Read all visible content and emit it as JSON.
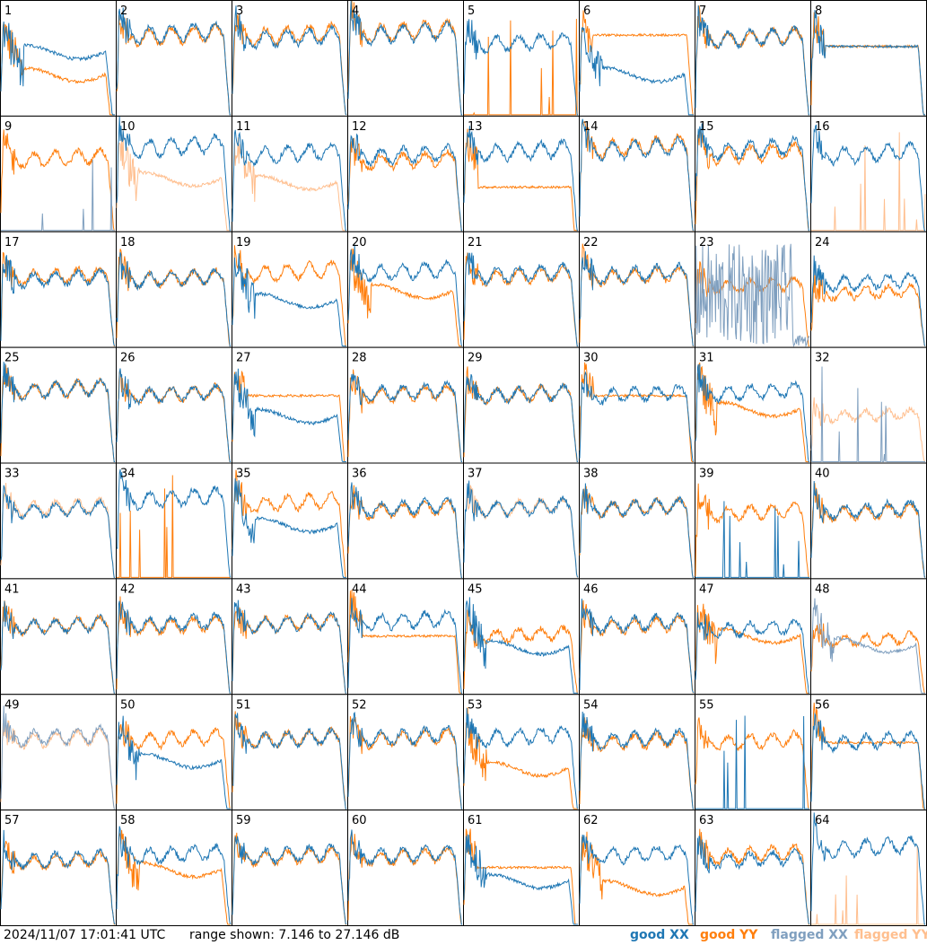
{
  "footer": {
    "timestamp": "2024/11/07 17:01:41 UTC",
    "range_text": "range shown: 7.146 to 27.146 dB",
    "legend_good_xx": "good XX",
    "legend_good_yy": "good YY",
    "legend_flagged_xx": "flagged XX",
    "legend_flagged_yy": "flagged YY"
  },
  "colors": {
    "good_xx": "#1f77b4",
    "good_yy": "#ff7f0e",
    "flagged_xx": "#7f9fbf",
    "flagged_yy": "#ffbf8f"
  },
  "chart_data": {
    "type": "line",
    "grid": {
      "rows": 8,
      "cols": 8
    },
    "ylim": [
      7.146,
      27.146
    ],
    "y_unit": "dB",
    "series_names": [
      "good XX",
      "good YY",
      "flagged XX",
      "flagged YY"
    ],
    "panel_labels": [
      "1",
      "2",
      "3",
      "4",
      "5",
      "6",
      "7",
      "8",
      "9",
      "10",
      "11",
      "12",
      "13",
      "14",
      "15",
      "16",
      "17",
      "18",
      "19",
      "20",
      "21",
      "22",
      "23",
      "24",
      "25",
      "26",
      "27",
      "28",
      "29",
      "30",
      "31",
      "32",
      "33",
      "34",
      "35",
      "36",
      "37",
      "38",
      "39",
      "40",
      "41",
      "42",
      "43",
      "44",
      "45",
      "46",
      "47",
      "48",
      "49",
      "50",
      "51",
      "52",
      "53",
      "54",
      "55",
      "56",
      "57",
      "58",
      "59",
      "60",
      "61",
      "62",
      "63",
      "64"
    ],
    "panels": {
      "1": {
        "xx": [
          "good",
          "drop",
          0.55
        ],
        "yy": [
          "good",
          "drop",
          0.35
        ]
      },
      "2": {
        "xx": [
          "good",
          "normal",
          0.7
        ],
        "yy": [
          "good",
          "normal",
          0.68
        ]
      },
      "3": {
        "xx": [
          "good",
          "normal",
          0.66
        ],
        "yy": [
          "good",
          "normal",
          0.69
        ]
      },
      "4": {
        "xx": [
          "good",
          "normal",
          0.7
        ],
        "yy": [
          "good",
          "normal",
          0.72
        ]
      },
      "5": {
        "xx": [
          "good",
          "normal",
          0.62
        ],
        "yy": [
          "good",
          "dead",
          0.0
        ]
      },
      "6": {
        "xx": [
          "good",
          "drop",
          0.35
        ],
        "yy": [
          "good",
          "flat",
          0.7
        ]
      },
      "7": {
        "xx": [
          "good",
          "normal",
          0.66
        ],
        "yy": [
          "good",
          "normal",
          0.66
        ]
      },
      "8": {
        "xx": [
          "good",
          "flat",
          0.6
        ],
        "yy": [
          "good",
          "flat",
          0.6
        ]
      },
      "9": {
        "xx": [
          "flagged",
          "dead",
          0.0
        ],
        "yy": [
          "good",
          "normal",
          0.62
        ]
      },
      "10": {
        "xx": [
          "good",
          "normal",
          0.72
        ],
        "yy": [
          "flagged",
          "drop",
          0.45
        ]
      },
      "11": {
        "xx": [
          "good",
          "normal",
          0.66
        ],
        "yy": [
          "flagged",
          "drop",
          0.42
        ]
      },
      "12": {
        "xx": [
          "good",
          "normal",
          0.65
        ],
        "yy": [
          "good",
          "normal",
          0.6
        ]
      },
      "13": {
        "xx": [
          "good",
          "normal",
          0.68
        ],
        "yy": [
          "good",
          "flat",
          0.38
        ]
      },
      "14": {
        "xx": [
          "good",
          "normal",
          0.7
        ],
        "yy": [
          "good",
          "normal",
          0.72
        ]
      },
      "15": {
        "xx": [
          "good",
          "normal",
          0.7
        ],
        "yy": [
          "good",
          "normal",
          0.66
        ]
      },
      "16": {
        "xx": [
          "good",
          "normal",
          0.66
        ],
        "yy": [
          "flagged",
          "dead",
          0.0
        ]
      },
      "17": {
        "xx": [
          "good",
          "normal",
          0.58
        ],
        "yy": [
          "good",
          "normal",
          0.6
        ]
      },
      "18": {
        "xx": [
          "good",
          "normal",
          0.58
        ],
        "yy": [
          "good",
          "normal",
          0.58
        ]
      },
      "19": {
        "xx": [
          "good",
          "drop",
          0.4
        ],
        "yy": [
          "good",
          "normal",
          0.64
        ]
      },
      "20": {
        "xx": [
          "good",
          "normal",
          0.64
        ],
        "yy": [
          "good",
          "drop",
          0.48
        ]
      },
      "21": {
        "xx": [
          "good",
          "normal",
          0.62
        ],
        "yy": [
          "good",
          "normal",
          0.6
        ]
      },
      "22": {
        "xx": [
          "good",
          "normal",
          0.62
        ],
        "yy": [
          "good",
          "normal",
          0.6
        ]
      },
      "23": {
        "xx": [
          "flagged",
          "noise",
          0.3
        ],
        "yy": [
          "good",
          "normal",
          0.52
        ]
      },
      "24": {
        "xx": [
          "good",
          "normal",
          0.55
        ],
        "yy": [
          "good",
          "normal",
          0.46
        ]
      },
      "25": {
        "xx": [
          "good",
          "normal",
          0.62
        ],
        "yy": [
          "good",
          "normal",
          0.62
        ]
      },
      "26": {
        "xx": [
          "good",
          "normal",
          0.58
        ],
        "yy": [
          "good",
          "normal",
          0.58
        ]
      },
      "27": {
        "xx": [
          "good",
          "drop",
          0.4
        ],
        "yy": [
          "good",
          "flat",
          0.58
        ]
      },
      "28": {
        "xx": [
          "good",
          "normal",
          0.6
        ],
        "yy": [
          "good",
          "normal",
          0.58
        ]
      },
      "29": {
        "xx": [
          "good",
          "normal",
          0.58
        ],
        "yy": [
          "good",
          "normal",
          0.58
        ]
      },
      "30": {
        "xx": [
          "good",
          "normal",
          0.58
        ],
        "yy": [
          "good",
          "flat",
          0.58
        ]
      },
      "31": {
        "xx": [
          "good",
          "normal",
          0.6
        ],
        "yy": [
          "good",
          "drop",
          0.46
        ]
      },
      "32": {
        "xx": [
          "flagged",
          "dead",
          0.0
        ],
        "yy": [
          "flagged",
          "normal",
          0.4
        ]
      },
      "33": {
        "xx": [
          "good",
          "normal",
          0.58
        ],
        "yy": [
          "flagged",
          "normal",
          0.6
        ]
      },
      "34": {
        "xx": [
          "good",
          "normal",
          0.68
        ],
        "yy": [
          "good",
          "dead",
          0.0
        ]
      },
      "35": {
        "xx": [
          "good",
          "drop",
          0.46
        ],
        "yy": [
          "good",
          "normal",
          0.64
        ]
      },
      "36": {
        "xx": [
          "good",
          "normal",
          0.6
        ],
        "yy": [
          "good",
          "normal",
          0.58
        ]
      },
      "37": {
        "xx": [
          "good",
          "normal",
          0.6
        ],
        "yy": [
          "flagged",
          "normal",
          0.6
        ]
      },
      "38": {
        "xx": [
          "good",
          "normal",
          0.6
        ],
        "yy": [
          "good",
          "normal",
          0.6
        ]
      },
      "39": {
        "xx": [
          "good",
          "dead",
          0.0
        ],
        "yy": [
          "good",
          "normal",
          0.56
        ]
      },
      "40": {
        "xx": [
          "good",
          "normal",
          0.58
        ],
        "yy": [
          "good",
          "normal",
          0.56
        ]
      },
      "41": {
        "xx": [
          "good",
          "normal",
          0.58
        ],
        "yy": [
          "good",
          "normal",
          0.58
        ]
      },
      "42": {
        "xx": [
          "good",
          "normal",
          0.6
        ],
        "yy": [
          "good",
          "normal",
          0.58
        ]
      },
      "43": {
        "xx": [
          "good",
          "normal",
          0.6
        ],
        "yy": [
          "good",
          "normal",
          0.6
        ]
      },
      "44": {
        "xx": [
          "good",
          "normal",
          0.62
        ],
        "yy": [
          "good",
          "flat",
          0.5
        ]
      },
      "45": {
        "xx": [
          "good",
          "drop",
          0.4
        ],
        "yy": [
          "good",
          "normal",
          0.5
        ]
      },
      "46": {
        "xx": [
          "good",
          "normal",
          0.6
        ],
        "yy": [
          "good",
          "normal",
          0.58
        ]
      },
      "47": {
        "xx": [
          "good",
          "normal",
          0.55
        ],
        "yy": [
          "good",
          "drop",
          0.5
        ]
      },
      "48": {
        "xx": [
          "flagged",
          "drop",
          0.42
        ],
        "yy": [
          "good",
          "normal",
          0.46
        ]
      },
      "49": {
        "xx": [
          "flagged",
          "normal",
          0.62
        ],
        "yy": [
          "flagged",
          "normal",
          0.6
        ]
      },
      "50": {
        "xx": [
          "good",
          "drop",
          0.42
        ],
        "yy": [
          "good",
          "normal",
          0.6
        ]
      },
      "51": {
        "xx": [
          "good",
          "normal",
          0.6
        ],
        "yy": [
          "good",
          "normal",
          0.6
        ]
      },
      "52": {
        "xx": [
          "good",
          "normal",
          0.62
        ],
        "yy": [
          "good",
          "normal",
          0.6
        ]
      },
      "53": {
        "xx": [
          "good",
          "normal",
          0.62
        ],
        "yy": [
          "good",
          "drop",
          0.35
        ]
      },
      "54": {
        "xx": [
          "good",
          "normal",
          0.6
        ],
        "yy": [
          "good",
          "normal",
          0.58
        ]
      },
      "55": {
        "xx": [
          "good",
          "dead",
          0.0
        ],
        "yy": [
          "good",
          "normal",
          0.58
        ]
      },
      "56": {
        "xx": [
          "good",
          "normal",
          0.58
        ],
        "yy": [
          "good",
          "flat",
          0.58
        ]
      },
      "57": {
        "xx": [
          "good",
          "normal",
          0.56
        ],
        "yy": [
          "good",
          "normal",
          0.54
        ]
      },
      "58": {
        "xx": [
          "good",
          "normal",
          0.6
        ],
        "yy": [
          "good",
          "drop",
          0.48
        ]
      },
      "59": {
        "xx": [
          "good",
          "normal",
          0.6
        ],
        "yy": [
          "good",
          "normal",
          0.58
        ]
      },
      "60": {
        "xx": [
          "good",
          "normal",
          0.6
        ],
        "yy": [
          "good",
          "normal",
          0.58
        ]
      },
      "61": {
        "xx": [
          "good",
          "drop",
          0.38
        ],
        "yy": [
          "good",
          "flat",
          0.5
        ]
      },
      "62": {
        "xx": [
          "good",
          "normal",
          0.6
        ],
        "yy": [
          "good",
          "drop",
          0.32
        ]
      },
      "63": {
        "xx": [
          "good",
          "normal",
          0.56
        ],
        "yy": [
          "good",
          "normal",
          0.6
        ]
      },
      "64": {
        "xx": [
          "good",
          "normal",
          0.66
        ],
        "yy": [
          "flagged",
          "dead",
          0.0
        ]
      }
    }
  }
}
